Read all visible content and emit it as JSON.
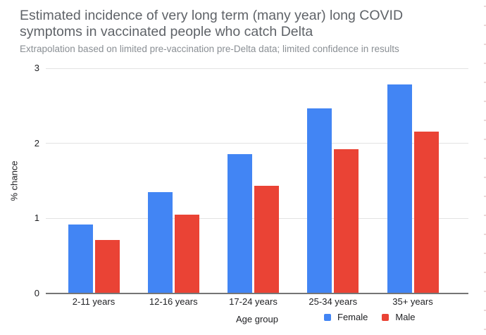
{
  "chart_data": {
    "type": "bar",
    "title": "Estimated incidence of very long term (many year) long COVID symptoms in vaccinated people who catch Delta",
    "subtitle": "Extrapolation based on limited pre-vaccination pre-Delta data; limited confidence in results",
    "categories": [
      "2-11 years",
      "12-16 years",
      "17-24 years",
      "25-34 years",
      "35+ years"
    ],
    "series": [
      {
        "name": "Female",
        "color": "#4285F4",
        "values": [
          0.92,
          1.35,
          1.86,
          2.47,
          2.78
        ]
      },
      {
        "name": "Male",
        "color": "#EA4335",
        "values": [
          0.71,
          1.05,
          1.43,
          1.92,
          2.16
        ]
      }
    ],
    "xlabel": "Age group",
    "ylabel": "% chance",
    "ylim": [
      0,
      3
    ],
    "yticks": [
      0,
      1,
      2,
      3
    ],
    "grid": true,
    "legend_position": "bottom-right"
  }
}
